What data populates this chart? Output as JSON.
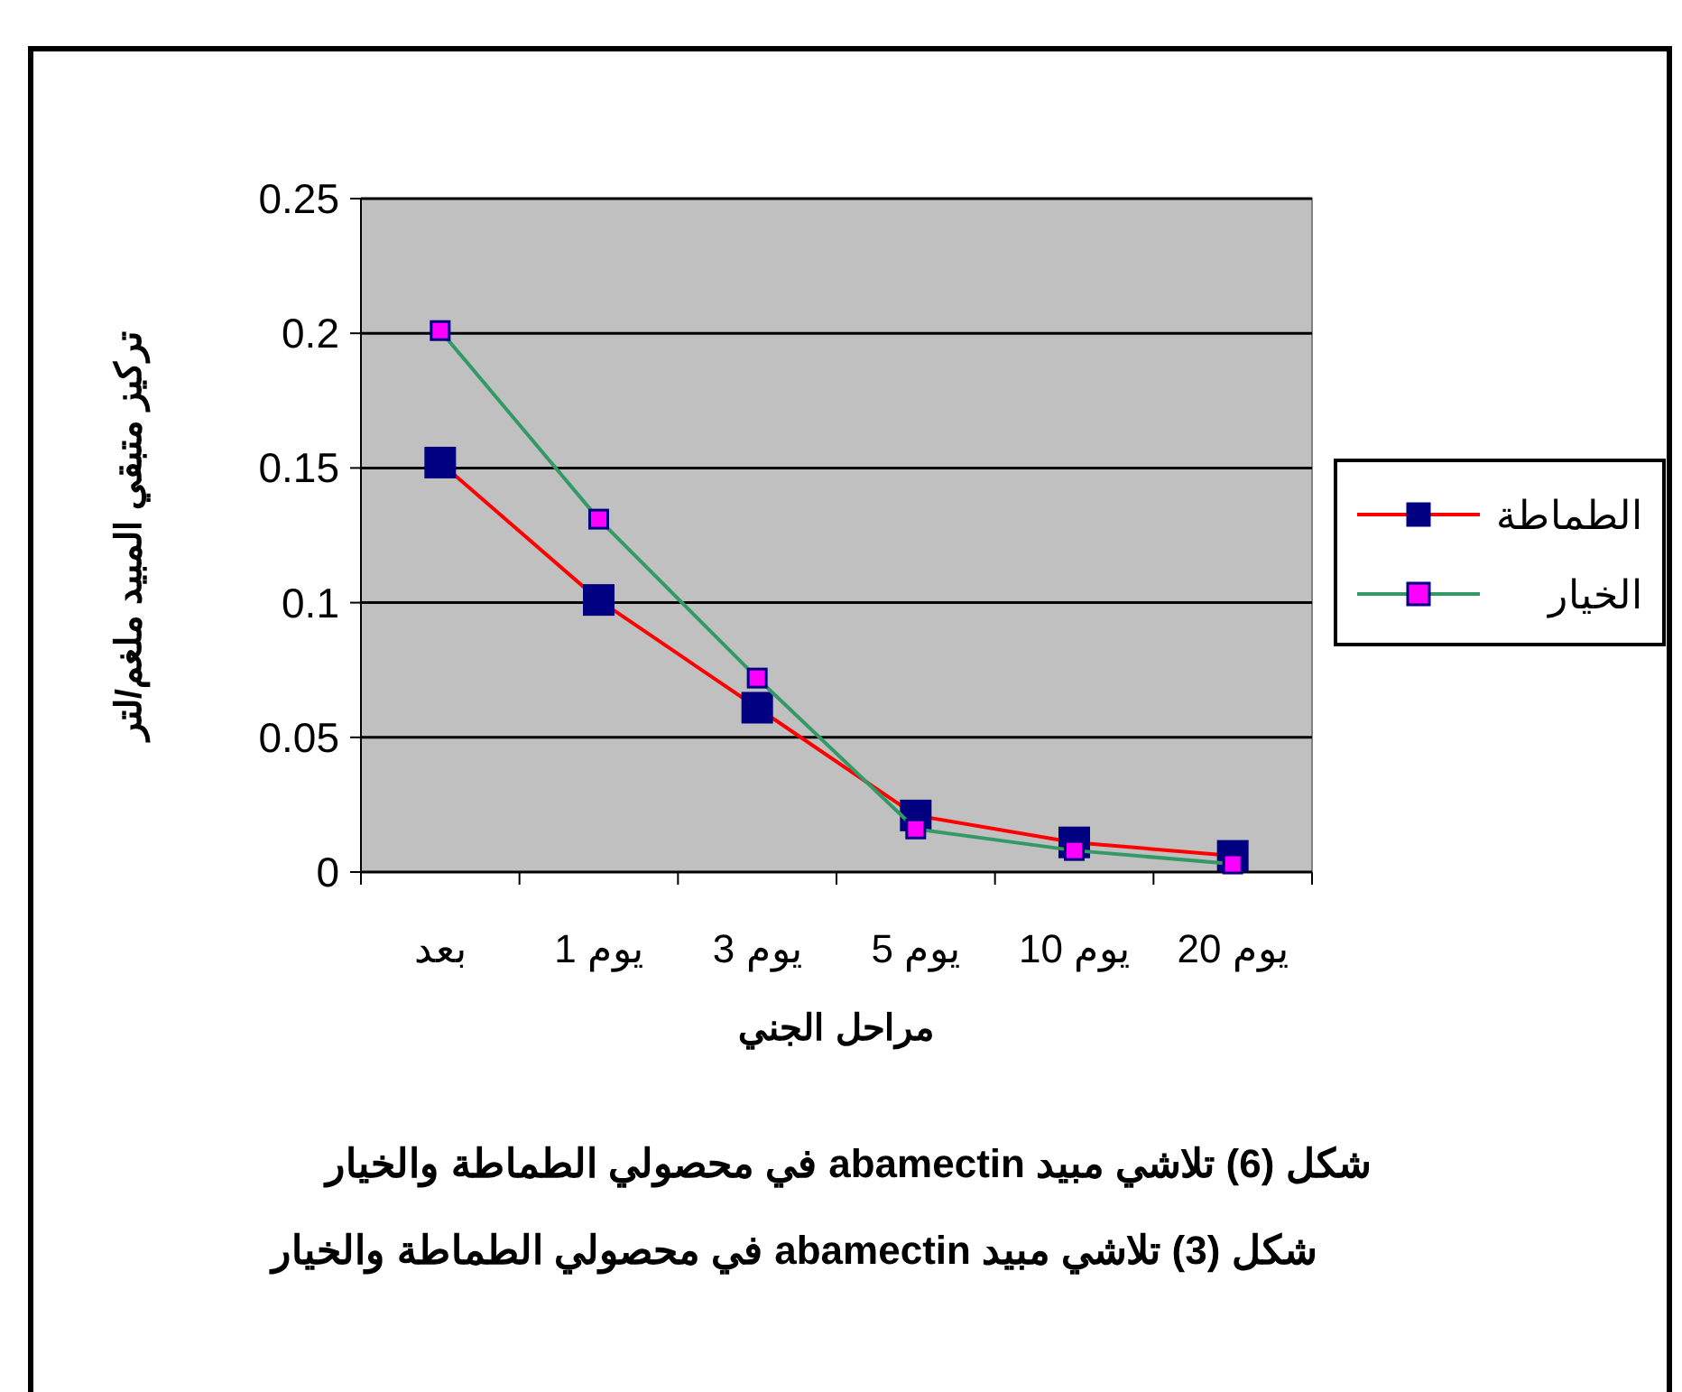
{
  "chart_data": {
    "type": "line",
    "title": "شكل (6) تلاشي مبيد abamectin في محصولي الطماطة والخيار",
    "xlabel": "مراحل الجني",
    "ylabel": "تركيز متبقي المبيد ملغم/لتر",
    "annotations": [
      "شكل (3) تلاشي مبيد abamectin في محصولي الطماطة والخيار"
    ],
    "categories": [
      "بعد",
      "1 يوم",
      "3 يوم",
      "5 يوم",
      "10 يوم",
      "20 يوم"
    ],
    "series": [
      {
        "name": "الطماطة",
        "color": "#ff0000",
        "colors": [
          "#000080",
          "#000080",
          "#000080",
          "#000080",
          "#000080",
          "#000080"
        ],
        "values": [
          0.152,
          0.101,
          0.061,
          0.021,
          0.011,
          0.006
        ]
      },
      {
        "name": "الخيار",
        "color": "#339966",
        "colors": [
          "#ff00ff",
          "#ff00ff",
          "#ff00ff",
          "#ff00ff",
          "#ff00ff",
          "#ff00ff"
        ],
        "values": [
          0.201,
          0.131,
          0.072,
          0.016,
          0.008,
          0.003
        ]
      }
    ],
    "ylim": [
      0,
      0.25
    ],
    "yticks": [
      0,
      0.05,
      0.1,
      0.15,
      0.2,
      0.25
    ],
    "grid": "y",
    "legend": "right",
    "marker": "square",
    "line_style": "solid"
  }
}
